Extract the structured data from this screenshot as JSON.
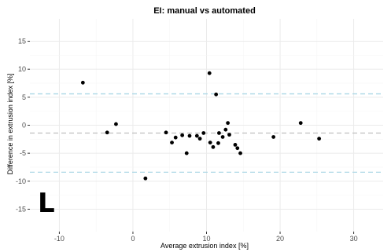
{
  "chart_data": {
    "type": "scatter",
    "title": "EI: manual vs automated",
    "xlabel": "Average extrusion index [%]",
    "ylabel": "Difference in extrusion index [%]",
    "panel_label": "L",
    "xlim": [
      -14,
      34
    ],
    "ylim": [
      -19,
      19
    ],
    "x_ticks": [
      -10,
      0,
      10,
      20,
      30
    ],
    "y_ticks": [
      -15,
      -10,
      -5,
      0,
      5,
      10,
      15
    ],
    "grid": true,
    "reference_lines": [
      {
        "y": 5.6,
        "style": "dashed",
        "color": "#add8e6"
      },
      {
        "y": -1.4,
        "style": "dashed",
        "color": "#bebebe"
      },
      {
        "y": -8.4,
        "style": "dashed",
        "color": "#add8e6"
      }
    ],
    "point_color": "#000000",
    "points": [
      {
        "x": -6.8,
        "y": 7.6
      },
      {
        "x": -3.5,
        "y": -1.3
      },
      {
        "x": -2.3,
        "y": 0.2
      },
      {
        "x": 1.7,
        "y": -9.5
      },
      {
        "x": 4.5,
        "y": -1.3
      },
      {
        "x": 5.3,
        "y": -3.1
      },
      {
        "x": 5.8,
        "y": -2.2
      },
      {
        "x": 6.7,
        "y": -1.8
      },
      {
        "x": 7.3,
        "y": -5.0
      },
      {
        "x": 7.7,
        "y": -1.9
      },
      {
        "x": 8.7,
        "y": -1.9
      },
      {
        "x": 9.1,
        "y": -2.4
      },
      {
        "x": 9.6,
        "y": -1.4
      },
      {
        "x": 10.4,
        "y": 9.3
      },
      {
        "x": 10.5,
        "y": -3.1
      },
      {
        "x": 10.9,
        "y": -3.9
      },
      {
        "x": 11.3,
        "y": 5.5
      },
      {
        "x": 11.6,
        "y": -3.2
      },
      {
        "x": 11.7,
        "y": -1.4
      },
      {
        "x": 12.2,
        "y": -2.1
      },
      {
        "x": 12.6,
        "y": -0.8
      },
      {
        "x": 12.9,
        "y": 0.4
      },
      {
        "x": 13.1,
        "y": -1.7
      },
      {
        "x": 13.9,
        "y": -3.5
      },
      {
        "x": 14.2,
        "y": -4.1
      },
      {
        "x": 14.6,
        "y": -5.0
      },
      {
        "x": 19.1,
        "y": -2.1
      },
      {
        "x": 22.8,
        "y": 0.4
      },
      {
        "x": 25.3,
        "y": -2.4
      }
    ]
  }
}
